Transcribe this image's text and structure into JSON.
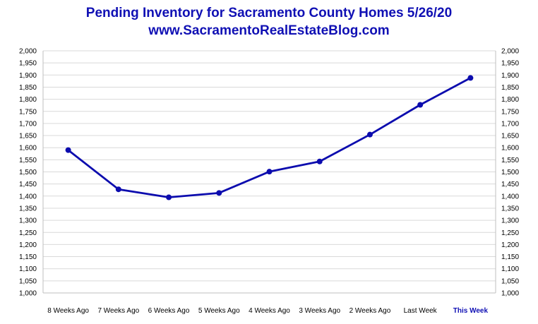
{
  "chart_data": {
    "type": "line",
    "title": "Pending Inventory for Sacramento County Homes 5/26/20",
    "subtitle": "www.SacramentoRealEstateBlog.com",
    "categories": [
      "8 Weeks Ago",
      "7 Weeks Ago",
      "6 Weeks Ago",
      "5 Weeks Ago",
      "4 Weeks Ago",
      "3 Weeks Ago",
      "2 Weeks Ago",
      "Last Week",
      "This Week"
    ],
    "highlight_category": "This Week",
    "series": [
      {
        "values": [
          1590,
          1428,
          1395,
          1413,
          1501,
          1543,
          1654,
          1777,
          1888
        ]
      }
    ],
    "ylim": [
      1000,
      2000
    ],
    "y_step": 50,
    "y_ticks": [
      "1,000",
      "1,050",
      "1,100",
      "1,150",
      "1,200",
      "1,250",
      "1,300",
      "1,350",
      "1,400",
      "1,450",
      "1,500",
      "1,550",
      "1,600",
      "1,650",
      "1,700",
      "1,750",
      "1,800",
      "1,850",
      "1,900",
      "1,950",
      "2,000"
    ],
    "dual_y_axis": true,
    "grid": true,
    "colors": {
      "line": "#0c0cae",
      "title": "#1010b4",
      "grid": "#d9d9d9",
      "highlight_label": "#1010b4"
    }
  }
}
